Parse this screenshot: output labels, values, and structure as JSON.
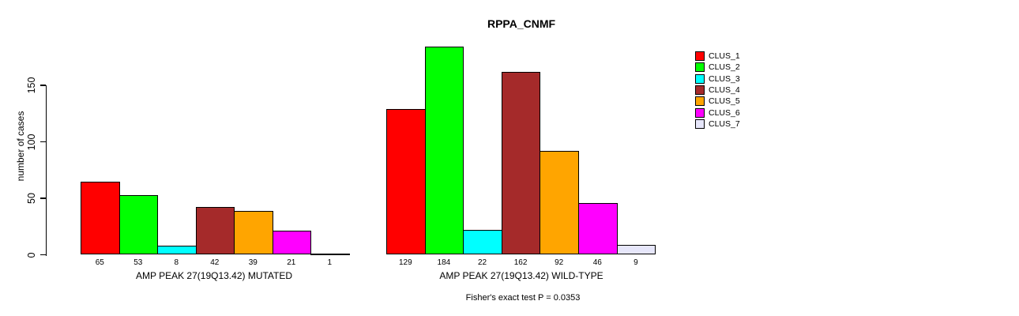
{
  "title": "RPPA_CNMF",
  "footer": "Fisher's exact test P = 0.0353",
  "y_axis": {
    "label": "number of cases",
    "ticks": [
      0,
      50,
      100,
      150
    ]
  },
  "legend": {
    "items": [
      {
        "label": "CLUS_1",
        "color": "#FF0000"
      },
      {
        "label": "CLUS_2",
        "color": "#00FF00"
      },
      {
        "label": "CLUS_3",
        "color": "#00FFFF"
      },
      {
        "label": "CLUS_4",
        "color": "#A52A2A"
      },
      {
        "label": "CLUS_5",
        "color": "#FFA500"
      },
      {
        "label": "CLUS_6",
        "color": "#FF00FF"
      },
      {
        "label": "CLUS_7",
        "color": "#E6E6FA"
      }
    ]
  },
  "chart_data": {
    "type": "bar",
    "title": "RPPA_CNMF",
    "ylabel": "number of cases",
    "ylim": [
      0,
      190
    ],
    "yticks": [
      0,
      50,
      100,
      150
    ],
    "grid": false,
    "legend_position": "right",
    "legend_entries": [
      "CLUS_1",
      "CLUS_2",
      "CLUS_3",
      "CLUS_4",
      "CLUS_5",
      "CLUS_6",
      "CLUS_7"
    ],
    "colors": [
      "#FF0000",
      "#00FF00",
      "#00FFFF",
      "#A52A2A",
      "#FFA500",
      "#FF00FF",
      "#E6E6FA"
    ],
    "annotation": "Fisher's exact test P = 0.0353",
    "groups": [
      {
        "label": "AMP PEAK 27(19Q13.42) MUTATED",
        "values": [
          65,
          53,
          8,
          42,
          39,
          21,
          1
        ]
      },
      {
        "label": "AMP PEAK 27(19Q13.42) WILD-TYPE",
        "values": [
          129,
          184,
          22,
          162,
          92,
          46,
          9
        ]
      }
    ]
  }
}
